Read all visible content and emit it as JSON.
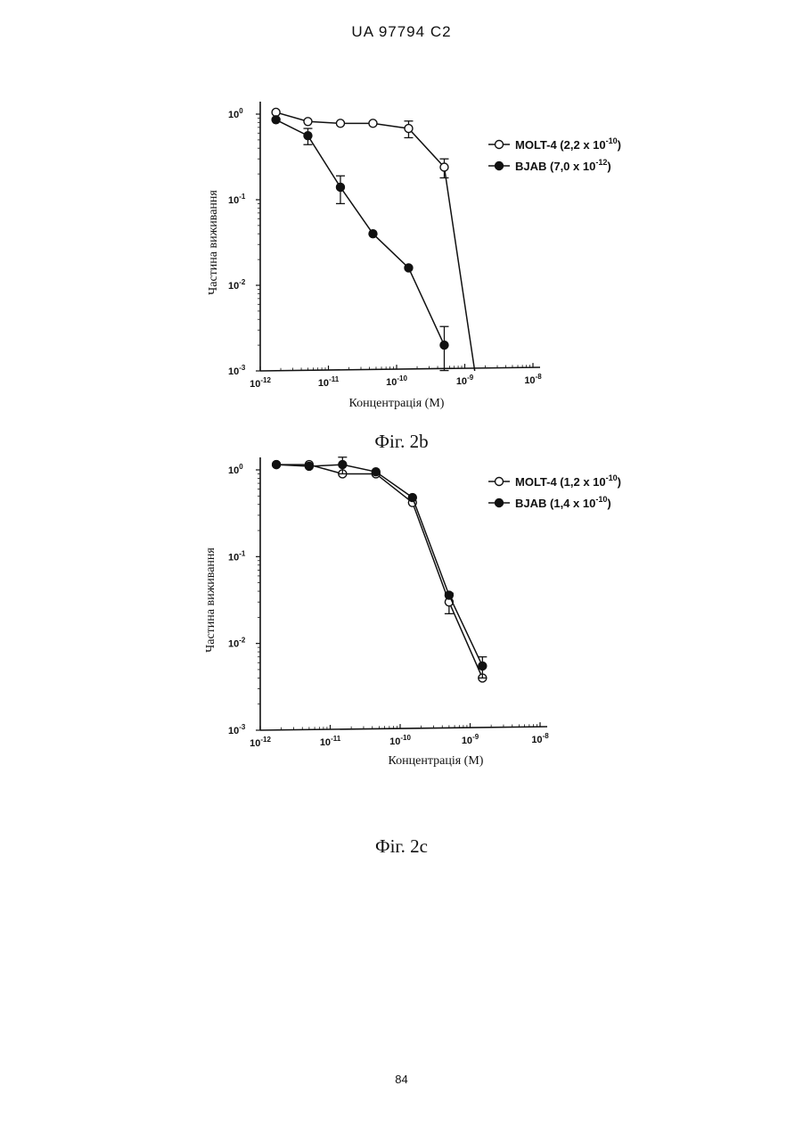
{
  "header": "UA   97794   C2",
  "page_number": "84",
  "chart_data": [
    {
      "type": "line",
      "caption": "Фіг. 2b",
      "xlabel": "Концентрація (M)",
      "ylabel": "Частина виживання",
      "xscale": "log",
      "yscale": "log",
      "xlim": [
        1e-12,
        1e-08
      ],
      "ylim": [
        0.001,
        1
      ],
      "xticks": [
        {
          "base": "10",
          "exp": "-12"
        },
        {
          "base": "10",
          "exp": "-11"
        },
        {
          "base": "10",
          "exp": "-10"
        },
        {
          "base": "10",
          "exp": "-9"
        },
        {
          "base": "10",
          "exp": "-8"
        }
      ],
      "yticks": [
        {
          "base": "10",
          "exp": "0"
        },
        {
          "base": "10",
          "exp": "-1"
        },
        {
          "base": "10",
          "exp": "-2"
        },
        {
          "base": "10",
          "exp": "-3"
        }
      ],
      "legend_position": "right",
      "series": [
        {
          "name": "MOLT-4 (2,2 x 10",
          "name_exp": "-10",
          "name_close": ")",
          "marker": "open",
          "x": [
            1.7e-12,
            5e-12,
            1.5e-11,
            4.5e-11,
            1.5e-10,
            5e-10
          ],
          "y": [
            1.05,
            0.82,
            0.78,
            0.78,
            0.68,
            0.24
          ],
          "err": [
            0,
            0,
            0,
            0,
            0.15,
            0.06
          ],
          "tail": {
            "x": 1.4e-09,
            "y": 0.001
          }
        },
        {
          "name": "BJAB (7,0 x 10",
          "name_exp": "-12",
          "name_close": ")",
          "marker": "filled",
          "x": [
            1.7e-12,
            5e-12,
            1.5e-11,
            4.5e-11,
            1.5e-10,
            5e-10
          ],
          "y": [
            0.86,
            0.56,
            0.14,
            0.04,
            0.016,
            0.002
          ],
          "err": [
            0,
            0.12,
            0.05,
            0,
            0,
            0.0013
          ]
        }
      ]
    },
    {
      "type": "line",
      "caption": "Фіг. 2c",
      "xlabel": "Концентрація (M)",
      "ylabel": "Частина виживання",
      "xscale": "log",
      "yscale": "log",
      "xlim": [
        1e-12,
        1e-08
      ],
      "ylim": [
        0.001,
        1
      ],
      "xticks": [
        {
          "base": "10",
          "exp": "-12"
        },
        {
          "base": "10",
          "exp": "-11"
        },
        {
          "base": "10",
          "exp": "-10"
        },
        {
          "base": "10",
          "exp": "-9"
        },
        {
          "base": "10",
          "exp": "-8"
        }
      ],
      "yticks": [
        {
          "base": "10",
          "exp": "0"
        },
        {
          "base": "10",
          "exp": "-1"
        },
        {
          "base": "10",
          "exp": "-2"
        },
        {
          "base": "10",
          "exp": "-3"
        }
      ],
      "legend_position": "right",
      "series": [
        {
          "name": "MOLT-4 (1,2 x 10",
          "name_exp": "-10",
          "name_close": ")",
          "marker": "open",
          "x": [
            1.7e-12,
            5e-12,
            1.5e-11,
            4.5e-11,
            1.5e-10,
            5e-10,
            1.5e-09
          ],
          "y": [
            1.15,
            1.15,
            0.9,
            0.9,
            0.42,
            0.03,
            0.004
          ],
          "err": [
            0,
            0,
            0,
            0,
            0,
            0.008,
            0
          ]
        },
        {
          "name": "BJAB  (1,4 x 10",
          "name_exp": "-10",
          "name_close": ")",
          "marker": "filled",
          "x": [
            1.7e-12,
            5e-12,
            1.5e-11,
            4.5e-11,
            1.5e-10,
            5e-10,
            1.5e-09
          ],
          "y": [
            1.15,
            1.1,
            1.15,
            0.95,
            0.48,
            0.036,
            0.0055
          ],
          "err": [
            0,
            0,
            0.25,
            0,
            0,
            0,
            0.0015
          ]
        }
      ]
    }
  ]
}
